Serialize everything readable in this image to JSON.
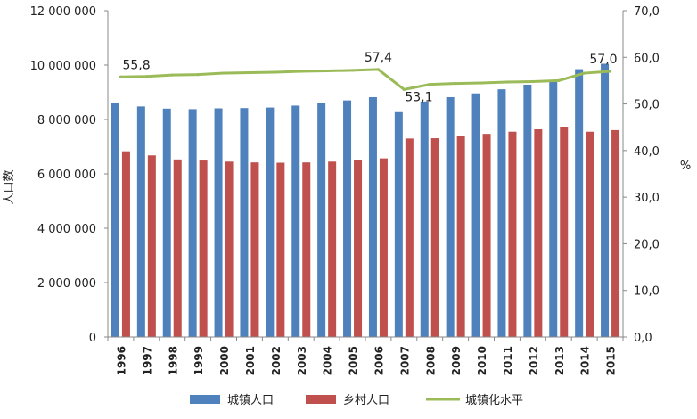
{
  "chart_data": {
    "type": "bar",
    "categories": [
      "1996",
      "1997",
      "1998",
      "1999",
      "2000",
      "2001",
      "2002",
      "2003",
      "2004",
      "2005",
      "2006",
      "2007",
      "2008",
      "2009",
      "2010",
      "2011",
      "2012",
      "2013",
      "2014",
      "2015"
    ],
    "series": [
      {
        "name": "城镇人口",
        "type": "bar",
        "axis": "left",
        "color": "#4F81BD",
        "values": [
          8620000,
          8480000,
          8400000,
          8380000,
          8410000,
          8420000,
          8440000,
          8510000,
          8600000,
          8700000,
          8820000,
          8270000,
          8660000,
          8820000,
          8960000,
          9110000,
          9280000,
          9450000,
          9850000,
          10050000
        ]
      },
      {
        "name": "乡村人口",
        "type": "bar",
        "axis": "left",
        "color": "#C0504D",
        "values": [
          6830000,
          6680000,
          6530000,
          6490000,
          6450000,
          6420000,
          6410000,
          6420000,
          6450000,
          6500000,
          6570000,
          7300000,
          7310000,
          7380000,
          7470000,
          7550000,
          7640000,
          7720000,
          7550000,
          7610000
        ]
      },
      {
        "name": "城镇化水平",
        "type": "line",
        "axis": "right",
        "color": "#9BBB59",
        "values": [
          55.8,
          55.9,
          56.2,
          56.3,
          56.6,
          56.7,
          56.8,
          57.0,
          57.1,
          57.2,
          57.4,
          53.1,
          54.2,
          54.4,
          54.5,
          54.7,
          54.8,
          55.0,
          56.6,
          57.0
        ]
      }
    ],
    "left_axis": {
      "label": "人口数",
      "ylim": [
        0,
        12000000
      ],
      "ticks": [
        0,
        2000000,
        4000000,
        6000000,
        8000000,
        10000000,
        12000000
      ],
      "tick_labels": [
        "0",
        "2 000 000",
        "4 000 000",
        "6 000 000",
        "8 000 000",
        "10 000 000",
        "12 000 000"
      ]
    },
    "right_axis": {
      "label": "%",
      "ylim": [
        0,
        70
      ],
      "ticks": [
        0,
        10,
        20,
        30,
        40,
        50,
        60,
        70
      ],
      "tick_labels": [
        "0,0",
        "10,0",
        "20,0",
        "30,0",
        "40,0",
        "50,0",
        "60,0",
        "70,0"
      ]
    },
    "annotations": [
      {
        "category": "1996",
        "text": "55,8"
      },
      {
        "category": "2006",
        "text": "57,4"
      },
      {
        "category": "2007",
        "text": "53,1"
      },
      {
        "category": "2015",
        "text": "57,0"
      }
    ],
    "grid": false,
    "legend": {
      "position": "bottom",
      "entries": [
        "城镇人口",
        "乡村人口",
        "城镇化水平"
      ]
    }
  }
}
